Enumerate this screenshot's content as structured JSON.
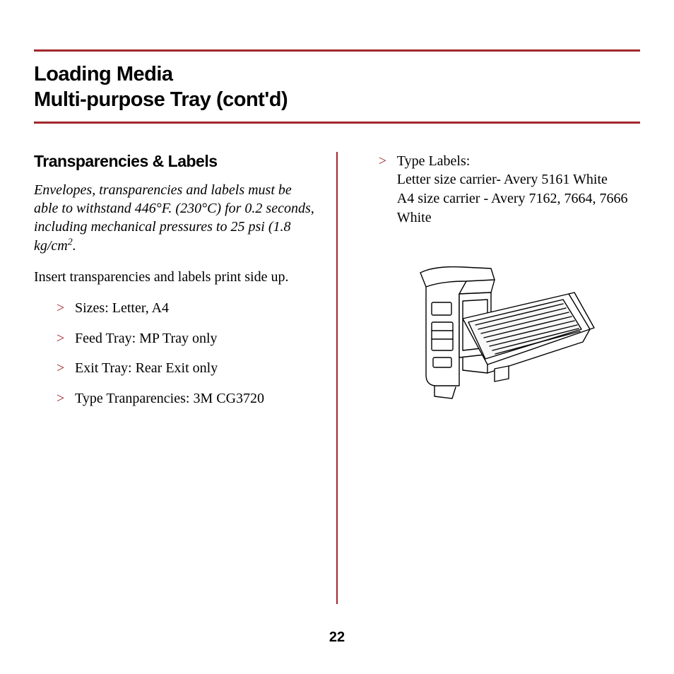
{
  "rule_color": "#a1272b",
  "title": {
    "line1": "Loading Media",
    "line2": "Multi-purpose Tray (cont'd)"
  },
  "left": {
    "subhead": "Transparencies & Labels",
    "note_html": "Envelopes, transparencies and labels must be able to withstand 446°F. (230°C) for 0.2 seconds, including mechanical pressures to 25 psi (1.8 kg/cm<span class=\"sup\">2</span>.",
    "body": "Insert transparencies and labels print side up.",
    "bullets": [
      "Sizes: Letter, A4",
      "Feed Tray: MP Tray only",
      "Exit Tray: Rear Exit only",
      "Type Tranparencies: 3M CG3720"
    ]
  },
  "right": {
    "bullet_html": "Type Labels:<br>Letter size carrier- Avery 5161 White<br>A4 size carrier - Avery 7162, 7664, 7666 White"
  },
  "page_number": "22"
}
